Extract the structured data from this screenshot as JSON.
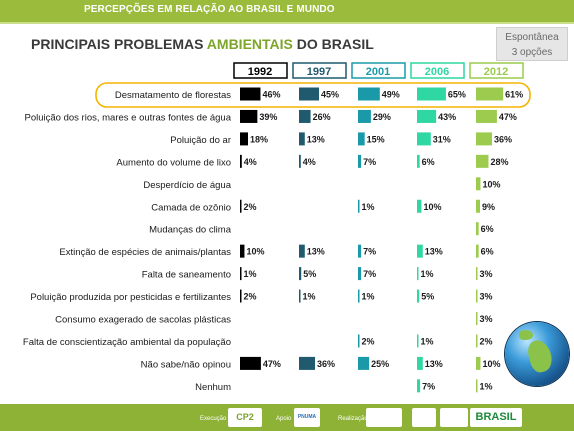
{
  "header": {
    "bar_title": "PERCEPÇÕES EM RELAÇÃO AO BRASIL E MUNDO"
  },
  "title": {
    "part1": "PRINCIPAIS PROBLEMAS ",
    "part2": "AMBIENTAIS",
    "part3": " DO BRASIL"
  },
  "badge": {
    "line1": "Espontânea",
    "line2": "3 opções"
  },
  "footer": {
    "execucao": "Execução",
    "apoio": "Apoio",
    "realizacao": "Realização",
    "logo_cp2": "CP2",
    "logo_pnuma": "PNUMA",
    "logo_brasil": "BRASIL"
  },
  "colors": {
    "1992": "#000000",
    "1997": "#1f5a6e",
    "2001": "#1a9aa8",
    "2006": "#2fd7a2",
    "2012": "#9ccb4d"
  },
  "chart_data": {
    "type": "bar",
    "title": "PRINCIPAIS PROBLEMAS AMBIENTAIS DO BRASIL",
    "series_years": [
      "1992",
      "1997",
      "2001",
      "2006",
      "2012"
    ],
    "categories": [
      "Desmatamento de florestas",
      "Poluição dos rios, mares e outras fontes de água",
      "Poluição do ar",
      "Aumento do volume de lixo",
      "Desperdício de água",
      "Camada de ozônio",
      "Mudanças do clima",
      "Extinção de espécies de animais/plantas",
      "Falta de saneamento",
      "Poluição produzida por pesticidas e fertilizantes",
      "Consumo exagerado de sacolas plásticas",
      "Falta de conscientização ambiental da população",
      "Não sabe/não opinou",
      "Nenhum"
    ],
    "series": [
      {
        "name": "1992",
        "values": [
          46,
          39,
          18,
          4,
          null,
          2,
          null,
          10,
          1,
          2,
          null,
          null,
          47,
          null
        ]
      },
      {
        "name": "1997",
        "values": [
          45,
          26,
          13,
          4,
          null,
          null,
          null,
          13,
          5,
          1,
          null,
          null,
          36,
          null
        ]
      },
      {
        "name": "2001",
        "values": [
          49,
          29,
          15,
          7,
          null,
          1,
          null,
          7,
          7,
          1,
          null,
          2,
          25,
          null
        ]
      },
      {
        "name": "2006",
        "values": [
          65,
          43,
          31,
          6,
          null,
          10,
          null,
          13,
          1,
          5,
          null,
          1,
          13,
          7
        ]
      },
      {
        "name": "2012",
        "values": [
          61,
          47,
          36,
          28,
          10,
          9,
          6,
          6,
          3,
          3,
          3,
          2,
          10,
          1
        ]
      }
    ],
    "value_labels": [
      [
        "46%",
        "45%",
        "49%",
        "65%",
        "61%"
      ],
      [
        "39%",
        "26%",
        "29%",
        "43%",
        "47%"
      ],
      [
        "18%",
        "13%",
        "15%",
        "31%",
        "36%"
      ],
      [
        "4%",
        "4%",
        "7%",
        "6%",
        "28%"
      ],
      [
        null,
        null,
        null,
        null,
        "10%"
      ],
      [
        "2%",
        null,
        "1%",
        "10%",
        "9%"
      ],
      [
        null,
        null,
        null,
        null,
        "6%"
      ],
      [
        "10%",
        "13%",
        "7%",
        "13%",
        "6%"
      ],
      [
        "1%",
        "5%",
        "7%",
        "1%",
        "3%"
      ],
      [
        "2%",
        "1%",
        "1%",
        "5%",
        "3%"
      ],
      [
        null,
        null,
        null,
        null,
        "3%"
      ],
      [
        null,
        null,
        "2%",
        "1%",
        "2%"
      ],
      [
        "47%",
        "36%",
        "25%",
        "13%",
        "10%"
      ],
      [
        null,
        null,
        null,
        "7%",
        "1%"
      ]
    ],
    "highlighted_category": "Desmatamento de florestas"
  }
}
